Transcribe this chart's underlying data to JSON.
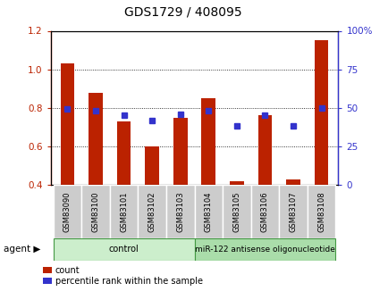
{
  "title": "GDS1729 / 408095",
  "categories": [
    "GSM83090",
    "GSM83100",
    "GSM83101",
    "GSM83102",
    "GSM83103",
    "GSM83104",
    "GSM83105",
    "GSM83106",
    "GSM83107",
    "GSM83108"
  ],
  "red_values": [
    1.03,
    0.88,
    0.73,
    0.6,
    0.75,
    0.85,
    0.42,
    0.76,
    0.43,
    1.15
  ],
  "blue_pct": [
    49,
    48,
    45,
    42,
    46,
    48,
    38,
    45,
    38,
    50
  ],
  "control_count": 5,
  "treatment_label": "miR-122 antisense oligonucleotide",
  "control_label": "control",
  "agent_label": "agent",
  "legend_count": "count",
  "legend_pct": "percentile rank within the sample",
  "ylim_left": [
    0.4,
    1.2
  ],
  "ylim_right": [
    0,
    100
  ],
  "yticks_left": [
    0.4,
    0.6,
    0.8,
    1.0,
    1.2
  ],
  "yticks_right": [
    0,
    25,
    50,
    75,
    100
  ],
  "ytick_labels_right": [
    "0",
    "25",
    "50",
    "75",
    "100%"
  ],
  "red_color": "#bb2200",
  "blue_color": "#3333cc",
  "control_bg": "#cceecc",
  "treatment_bg": "#aaddaa",
  "tick_bg": "#cccccc",
  "bar_width": 0.5,
  "blue_marker_size": 5
}
